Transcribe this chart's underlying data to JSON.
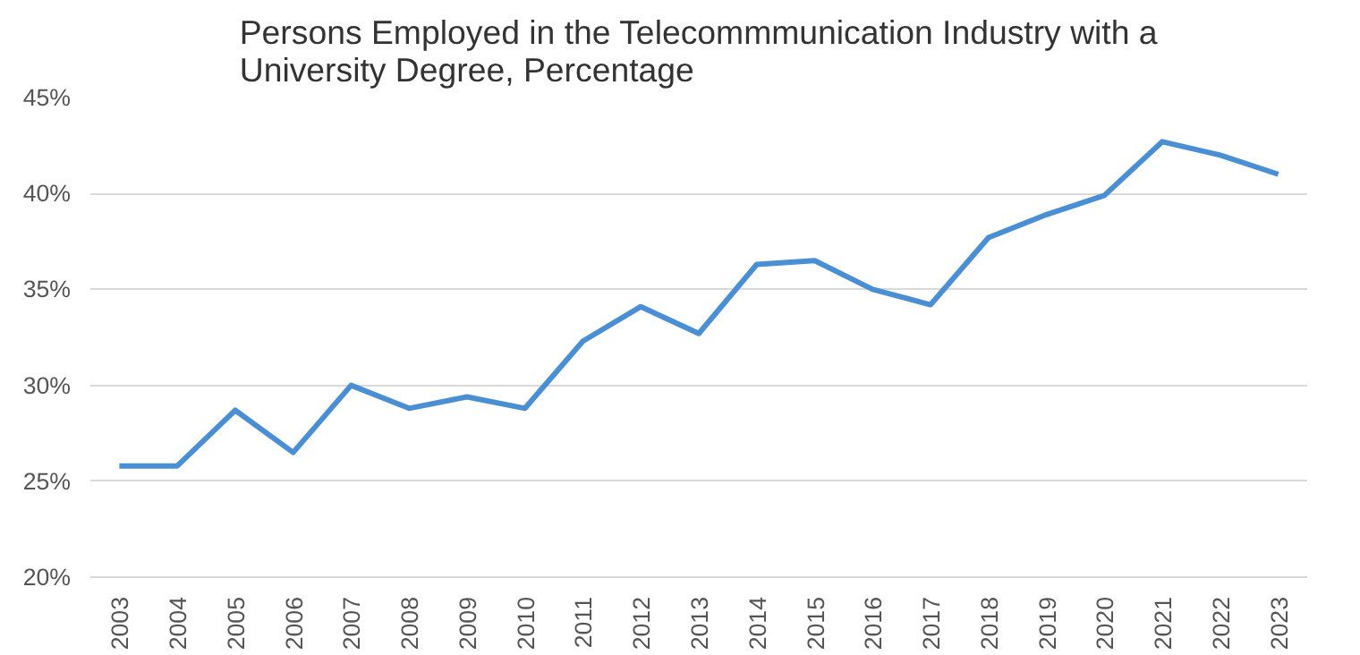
{
  "chart_data": {
    "type": "line",
    "title": "Persons Employed in the Telecommmunication Industry with a\nUniversity Degree, Percentage",
    "categories": [
      "2003",
      "2004",
      "2005",
      "2006",
      "2007",
      "2008",
      "2009",
      "2010",
      "2011",
      "2012",
      "2013",
      "2014",
      "2015",
      "2016",
      "2017",
      "2018",
      "2019",
      "2020",
      "2021",
      "2022",
      "2023"
    ],
    "series": [
      {
        "color": "#4a8fd4",
        "values": [
          25.8,
          25.8,
          28.7,
          26.5,
          30.0,
          28.8,
          29.4,
          28.8,
          32.3,
          34.1,
          32.7,
          36.3,
          36.5,
          35.0,
          34.2,
          37.7,
          38.9,
          39.9,
          42.7,
          42.0,
          41.0
        ]
      }
    ],
    "ylim": [
      20,
      45
    ],
    "yticks": [
      {
        "value": 20,
        "label": "20%"
      },
      {
        "value": 25,
        "label": "25%"
      },
      {
        "value": 30,
        "label": "30%"
      },
      {
        "value": 35,
        "label": "35%"
      },
      {
        "value": 40,
        "label": "40%"
      },
      {
        "value": 45,
        "label": "45%"
      }
    ],
    "grid": "y",
    "marker": "none",
    "line_style": "solid"
  }
}
